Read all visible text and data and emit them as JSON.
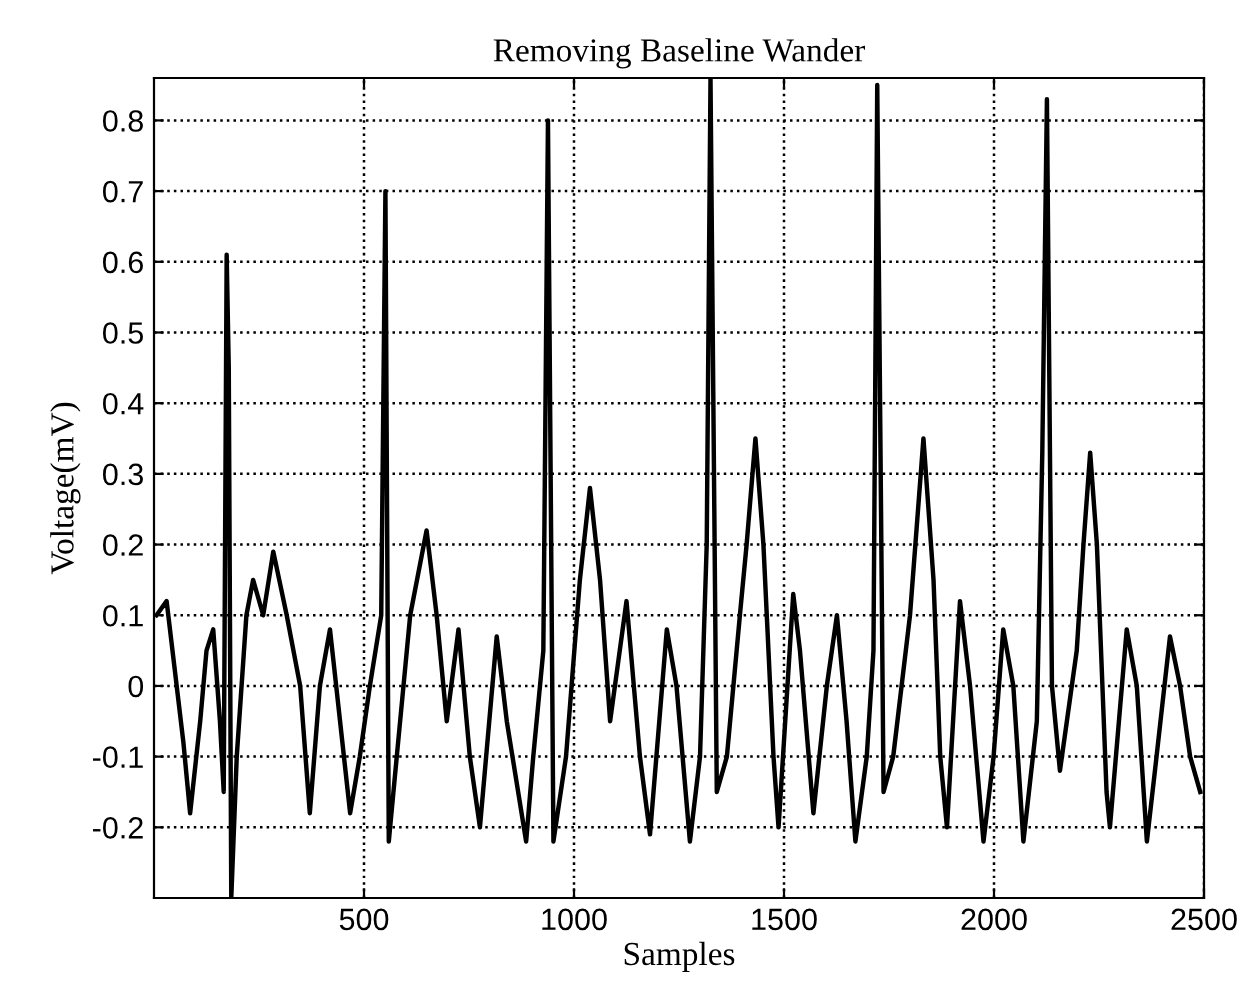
{
  "chart_data": {
    "type": "line",
    "title": "Removing Baseline Wander",
    "xlabel": "Samples",
    "ylabel": "Voltage(mV)",
    "xlim": [
      0,
      2500
    ],
    "xticks": [
      500,
      1000,
      1500,
      2000,
      2500
    ],
    "ylim": [
      -0.3,
      0.86
    ],
    "yticks": [
      -0.2,
      -0.1,
      0,
      0.1,
      0.2,
      0.3,
      0.4,
      0.5,
      0.6,
      0.7,
      0.8
    ],
    "grid": true,
    "marker": "none",
    "line_style": "solid",
    "series": [
      {
        "color": "#000000",
        "x": [
          6,
          30,
          70,
          86,
          110,
          125,
          141,
          157,
          166,
          173,
          178,
          184,
          197,
          220,
          236,
          260,
          284,
          316,
          348,
          371,
          395,
          419,
          443,
          467,
          490,
          514,
          541,
          551,
          559,
          578,
          610,
          649,
          673,
          697,
          725,
          752,
          776,
          816,
          840,
          886,
          903,
          927,
          938,
          951,
          981,
          1014,
          1038,
          1062,
          1086,
          1125,
          1157,
          1181,
          1221,
          1244,
          1276,
          1300,
          1316,
          1325,
          1340,
          1364,
          1395,
          1411,
          1432,
          1451,
          1475,
          1487,
          1522,
          1538,
          1570,
          1602,
          1626,
          1649,
          1670,
          1697,
          1713,
          1722,
          1737,
          1760,
          1800,
          1832,
          1856,
          1872,
          1888,
          1919,
          1943,
          1975,
          1999,
          2022,
          2046,
          2070,
          2102,
          2115,
          2126,
          2138,
          2157,
          2197,
          2213,
          2229,
          2245,
          2268,
          2276,
          2316,
          2340,
          2364,
          2387,
          2419,
          2443,
          2467,
          2491
        ],
        "values": [
          0.1,
          0.12,
          -0.08,
          -0.18,
          -0.05,
          0.05,
          0.08,
          -0.05,
          -0.15,
          0.61,
          0.45,
          -0.3,
          -0.1,
          0.1,
          0.15,
          0.1,
          0.19,
          0.1,
          0.0,
          -0.18,
          0.0,
          0.08,
          -0.05,
          -0.18,
          -0.1,
          0.0,
          0.1,
          0.7,
          -0.22,
          -0.1,
          0.1,
          0.22,
          0.1,
          -0.05,
          0.08,
          -0.1,
          -0.2,
          0.07,
          -0.05,
          -0.22,
          -0.1,
          0.05,
          0.8,
          -0.22,
          -0.1,
          0.15,
          0.28,
          0.15,
          -0.05,
          0.12,
          -0.1,
          -0.21,
          0.08,
          0.0,
          -0.22,
          -0.1,
          0.2,
          0.86,
          -0.15,
          -0.1,
          0.1,
          0.2,
          0.35,
          0.2,
          -0.1,
          -0.2,
          0.13,
          0.05,
          -0.18,
          0.0,
          0.1,
          -0.05,
          -0.22,
          -0.1,
          0.05,
          0.85,
          -0.15,
          -0.1,
          0.1,
          0.35,
          0.15,
          -0.1,
          -0.2,
          0.12,
          0.0,
          -0.22,
          -0.1,
          0.08,
          0.0,
          -0.22,
          -0.05,
          0.33,
          0.83,
          0.0,
          -0.12,
          0.05,
          0.2,
          0.33,
          0.2,
          -0.15,
          -0.2,
          0.08,
          0.0,
          -0.22,
          -0.1,
          0.07,
          0.0,
          -0.1,
          -0.15
        ]
      }
    ]
  }
}
